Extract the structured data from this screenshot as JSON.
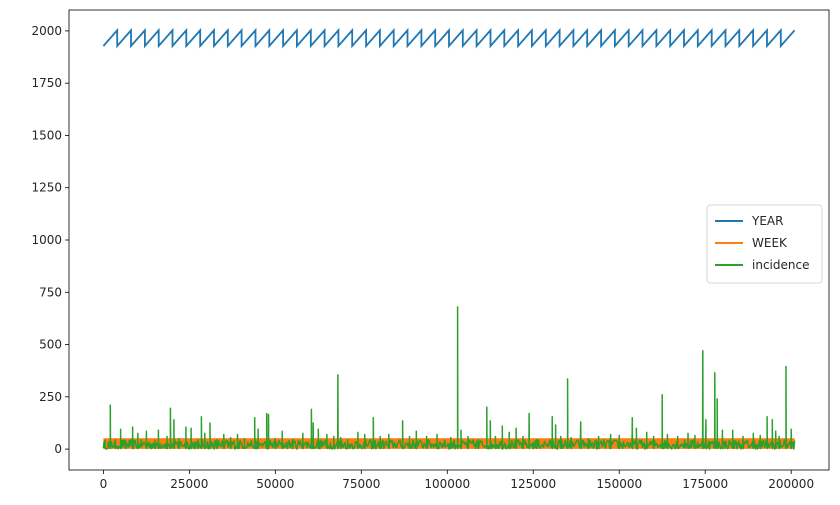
{
  "chart_data": {
    "type": "line",
    "title": "",
    "xlabel": "",
    "ylabel": "",
    "xlim": [
      -10000,
      211000
    ],
    "ylim": [
      -100,
      2100
    ],
    "x_ticks": [
      0,
      25000,
      50000,
      75000,
      100000,
      125000,
      150000,
      175000,
      200000
    ],
    "x_tick_labels": [
      "0",
      "25000",
      "50000",
      "75000",
      "100000",
      "125000",
      "150000",
      "175000",
      "200000"
    ],
    "y_ticks": [
      0,
      250,
      500,
      750,
      1000,
      1250,
      1500,
      1750,
      2000
    ],
    "y_tick_labels": [
      "0",
      "250",
      "500",
      "750",
      "1000",
      "1250",
      "1500",
      "1750",
      "2000"
    ],
    "grid": false,
    "legend": {
      "position": "center-right"
    },
    "x_max": 201000,
    "series": [
      {
        "name": "YEAR",
        "color": "#1f77b4",
        "pattern": "sawtooth",
        "year_min": 1928,
        "year_max": 2003,
        "cycles": 50
      },
      {
        "name": "WEEK",
        "color": "#ff7f0e",
        "pattern": "band",
        "week_min": 1,
        "week_max": 52
      },
      {
        "name": "incidence",
        "color": "#2ca02c",
        "pattern": "spikes",
        "baseline_max": 45,
        "peaks": [
          [
            500,
            20
          ],
          [
            2000,
            210
          ],
          [
            3500,
            20
          ],
          [
            5000,
            95
          ],
          [
            6500,
            40
          ],
          [
            8500,
            105
          ],
          [
            10000,
            75
          ],
          [
            12500,
            85
          ],
          [
            15000,
            40
          ],
          [
            16000,
            90
          ],
          [
            18500,
            60
          ],
          [
            19500,
            195
          ],
          [
            20500,
            140
          ],
          [
            22000,
            50
          ],
          [
            24000,
            105
          ],
          [
            25500,
            100
          ],
          [
            27500,
            45
          ],
          [
            28500,
            155
          ],
          [
            29500,
            75
          ],
          [
            31000,
            125
          ],
          [
            33000,
            45
          ],
          [
            35000,
            70
          ],
          [
            37000,
            55
          ],
          [
            39000,
            70
          ],
          [
            41000,
            50
          ],
          [
            44000,
            150
          ],
          [
            45000,
            95
          ],
          [
            47500,
            170
          ],
          [
            48000,
            165
          ],
          [
            50000,
            50
          ],
          [
            52000,
            85
          ],
          [
            55000,
            45
          ],
          [
            58000,
            75
          ],
          [
            60500,
            190
          ],
          [
            61000,
            125
          ],
          [
            62500,
            95
          ],
          [
            65000,
            70
          ],
          [
            67000,
            60
          ],
          [
            68200,
            355
          ],
          [
            69000,
            55
          ],
          [
            71000,
            45
          ],
          [
            74000,
            80
          ],
          [
            76000,
            70
          ],
          [
            78500,
            150
          ],
          [
            80500,
            60
          ],
          [
            83000,
            70
          ],
          [
            87000,
            135
          ],
          [
            89000,
            60
          ],
          [
            91000,
            85
          ],
          [
            94000,
            60
          ],
          [
            97000,
            70
          ],
          [
            101000,
            55
          ],
          [
            103000,
            680
          ],
          [
            104000,
            90
          ],
          [
            106000,
            60
          ],
          [
            109000,
            45
          ],
          [
            111500,
            200
          ],
          [
            112500,
            135
          ],
          [
            114000,
            60
          ],
          [
            116000,
            110
          ],
          [
            118000,
            80
          ],
          [
            120000,
            100
          ],
          [
            122000,
            60
          ],
          [
            123800,
            170
          ],
          [
            126000,
            45
          ],
          [
            130500,
            155
          ],
          [
            131500,
            115
          ],
          [
            133000,
            60
          ],
          [
            135000,
            335
          ],
          [
            136000,
            55
          ],
          [
            138800,
            130
          ],
          [
            141000,
            50
          ],
          [
            144000,
            60
          ],
          [
            147500,
            70
          ],
          [
            150000,
            65
          ],
          [
            153800,
            150
          ],
          [
            155000,
            100
          ],
          [
            158000,
            80
          ],
          [
            160000,
            60
          ],
          [
            162500,
            260
          ],
          [
            164000,
            70
          ],
          [
            167000,
            60
          ],
          [
            170000,
            75
          ],
          [
            172000,
            65
          ],
          [
            174300,
            470
          ],
          [
            175200,
            140
          ],
          [
            177800,
            365
          ],
          [
            178500,
            240
          ],
          [
            180000,
            90
          ],
          [
            183000,
            90
          ],
          [
            186000,
            60
          ],
          [
            189000,
            75
          ],
          [
            191000,
            65
          ],
          [
            193000,
            155
          ],
          [
            194500,
            140
          ],
          [
            195500,
            85
          ],
          [
            196500,
            60
          ],
          [
            198500,
            395
          ],
          [
            200000,
            95
          ]
        ]
      }
    ]
  }
}
